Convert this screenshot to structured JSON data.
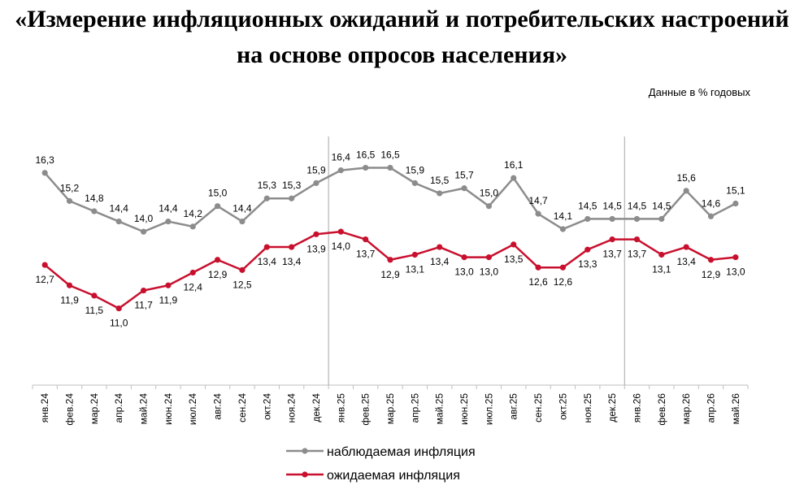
{
  "title_line1": "«Измерение инфляционных ожиданий и потребительских настроений",
  "title_line2": "на основе опросов населения»",
  "units_note": "Данные в % годовых",
  "colors": {
    "observed": "#8c8c8c",
    "expected": "#c8102e"
  },
  "chart_data": {
    "type": "line",
    "title": "«Измерение инфляционных ожиданий и потребительских настроений на основе опросов населения»",
    "ylabel": "Данные в % годовых",
    "ylim": [
      8.0,
      17.5
    ],
    "grid": false,
    "legend_placement": "bottom",
    "categories": [
      "янв.24",
      "фев.24",
      "мар.24",
      "апр.24",
      "май.24",
      "июн.24",
      "июл.24",
      "авг.24",
      "сен.24",
      "окт.24",
      "ноя.24",
      "дек.24",
      "янв.25",
      "фев.25",
      "мар.25",
      "апр.25",
      "май.25",
      "июн.25",
      "июл.25",
      "авг.25",
      "сен.25",
      "окт.25",
      "ноя.25",
      "дек.25",
      "янв.26",
      "фев.26",
      "мар.26",
      "апр.26",
      "май.26"
    ],
    "series": [
      {
        "name": "наблюдаемая инфляция",
        "values": [
          16.3,
          15.2,
          14.8,
          14.4,
          14.0,
          14.4,
          14.2,
          15.0,
          14.4,
          15.3,
          15.3,
          15.9,
          16.4,
          16.5,
          16.5,
          15.9,
          15.5,
          15.7,
          15.0,
          16.1,
          14.7,
          14.1,
          14.5,
          14.5,
          14.5,
          14.5,
          15.6,
          14.6,
          15.1
        ],
        "labels": [
          "16,3",
          "15,2",
          "14,8",
          "14,4",
          "14,0",
          "14,4",
          "14,2",
          "15,0",
          "14,4",
          "15,3",
          "15,3",
          "15,9",
          "16,4",
          "16,5",
          "16,5",
          "15,9",
          "15,5",
          "15,7",
          "15,0",
          "16,1",
          "14,7",
          "14,1",
          "14,5",
          "14,5",
          "14,5",
          "14,5",
          "15,6",
          "14,6",
          "15,1"
        ]
      },
      {
        "name": "ожидаемая инфляция",
        "values": [
          12.7,
          11.9,
          11.5,
          11.0,
          11.7,
          11.9,
          12.4,
          12.9,
          12.5,
          13.4,
          13.4,
          13.9,
          14.0,
          13.7,
          12.9,
          13.1,
          13.4,
          13.0,
          13.0,
          13.5,
          12.6,
          12.6,
          13.3,
          13.7,
          13.7,
          13.1,
          13.4,
          12.9,
          13.0
        ],
        "labels": [
          "12,7",
          "11,9",
          "11,5",
          "11,0",
          "11,7",
          "11,9",
          "12,4",
          "12,9",
          "12,5",
          "13,4",
          "13,4",
          "13,9",
          "14,0",
          "13,7",
          "12,9",
          "13,1",
          "13,4",
          "13,0",
          "13,0",
          "13,5",
          "12,6",
          "12,6",
          "13,3",
          "13,7",
          "13,7",
          "13,1",
          "13,4",
          "12,9",
          "13,0"
        ]
      }
    ]
  }
}
